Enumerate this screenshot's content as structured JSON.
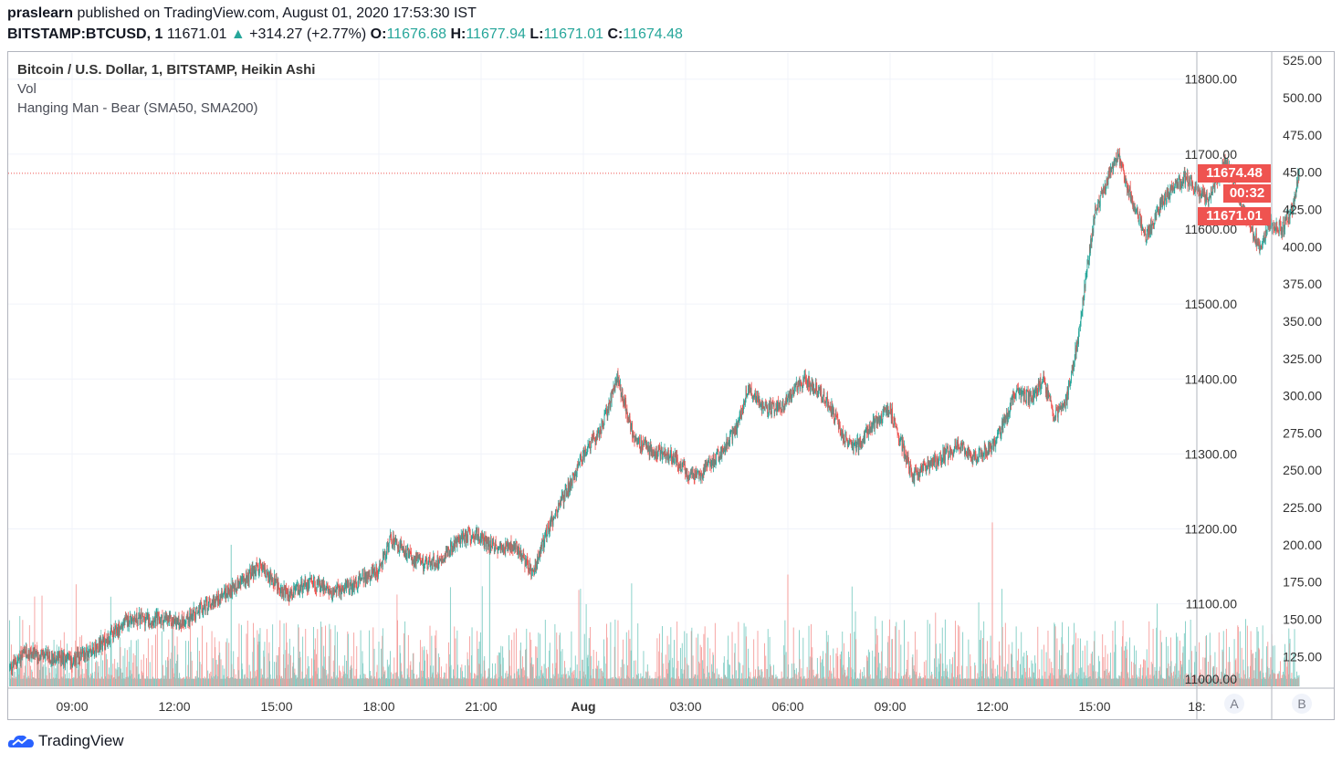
{
  "header": {
    "publisher": "praslearn",
    "published_text": "published on TradingView.com, August 01, 2020 17:53:30 IST",
    "symbol": "BITSTAMP:BTCUSD, 1",
    "last": "11671.01",
    "change": "+314.27 (+2.77%)",
    "open_label": "O:",
    "open": "11676.68",
    "high_label": "H:",
    "high": "11677.94",
    "low_label": "L:",
    "low": "11671.01",
    "close_label": "C:",
    "close": "11674.48"
  },
  "legend": {
    "title": "Bitcoin / U.S. Dollar, 1, BITSTAMP, Heikin Ashi",
    "vol": "Vol",
    "indicator": "Hanging Man - Bear (SMA50, SMA200)"
  },
  "price_badges": {
    "close": "11674.48",
    "countdown": "00:32",
    "low": "11671.01"
  },
  "axis_buttons": {
    "auto": "A",
    "log": "B"
  },
  "brand": "TradingView",
  "colors": {
    "up": "#26a69a",
    "down": "#ef5350",
    "grid": "#f0f3fa",
    "axis_border": "#b2b5be"
  },
  "chart_data": {
    "type": "candlestick",
    "title": "Bitcoin / U.S. Dollar, 1, BITSTAMP, Heikin Ashi",
    "price_axis": {
      "ylim": [
        10990,
        11835
      ],
      "ticks": [
        "11800.00",
        "11700.00",
        "11600.00",
        "11500.00",
        "11400.00",
        "11300.00",
        "11200.00",
        "11100.00",
        "11000.00"
      ]
    },
    "volume_axis": {
      "ylim": [
        105,
        530
      ],
      "ticks": [
        "525.00",
        "500.00",
        "475.00",
        "450.00",
        "425.00",
        "400.00",
        "375.00",
        "350.00",
        "325.00",
        "300.00",
        "275.00",
        "250.00",
        "225.00",
        "200.00",
        "175.00",
        "150.00",
        "125.00"
      ]
    },
    "x_ticks": [
      "09:00",
      "12:00",
      "15:00",
      "18:00",
      "21:00",
      "Aug",
      "03:00",
      "06:00",
      "09:00",
      "12:00",
      "15:00",
      "18:"
    ],
    "current_close": 11674.48,
    "current_low": 11671.01,
    "price_path": {
      "times_min": [
        -110,
        -80,
        -40,
        0,
        60,
        100,
        150,
        190,
        240,
        300,
        330,
        380,
        420,
        460,
        490,
        540,
        560,
        600,
        610,
        640,
        680,
        710,
        740,
        780,
        810,
        840,
        870,
        900,
        930,
        960,
        990,
        1020,
        1060,
        1090,
        1110,
        1140,
        1170,
        1190,
        1220,
        1250,
        1290,
        1330,
        1360,
        1380,
        1410,
        1440,
        1480,
        1520,
        1560,
        1590,
        1620,
        1640,
        1660,
        1690,
        1710,
        1730,
        1750,
        1770,
        1800,
        1840,
        1870,
        1890,
        1920,
        1960,
        1980,
        2000,
        2030,
        2060,
        2090,
        2110,
        2130,
        2150,
        2160
      ],
      "values": [
        11015,
        11035,
        11030,
        11025,
        11050,
        11080,
        11080,
        11075,
        11100,
        11130,
        11150,
        11110,
        11130,
        11115,
        11125,
        11145,
        11185,
        11160,
        11155,
        11155,
        11185,
        11195,
        11175,
        11180,
        11140,
        11205,
        11250,
        11300,
        11330,
        11400,
        11320,
        11305,
        11295,
        11270,
        11275,
        11300,
        11335,
        11390,
        11360,
        11365,
        11400,
        11370,
        11320,
        11310,
        11340,
        11360,
        11270,
        11290,
        11310,
        11295,
        11310,
        11340,
        11380,
        11375,
        11400,
        11350,
        11370,
        11450,
        11620,
        11700,
        11630,
        11590,
        11640,
        11670,
        11650,
        11640,
        11690,
        11630,
        11575,
        11610,
        11600,
        11630,
        11675
      ]
    },
    "notable_volume_spikes": [
      {
        "time": "13:40",
        "value": 200
      },
      {
        "time": "21:15",
        "value": 205
      },
      {
        "time": "06:00",
        "value": 180
      },
      {
        "time": "12:00",
        "value": 215
      }
    ]
  }
}
